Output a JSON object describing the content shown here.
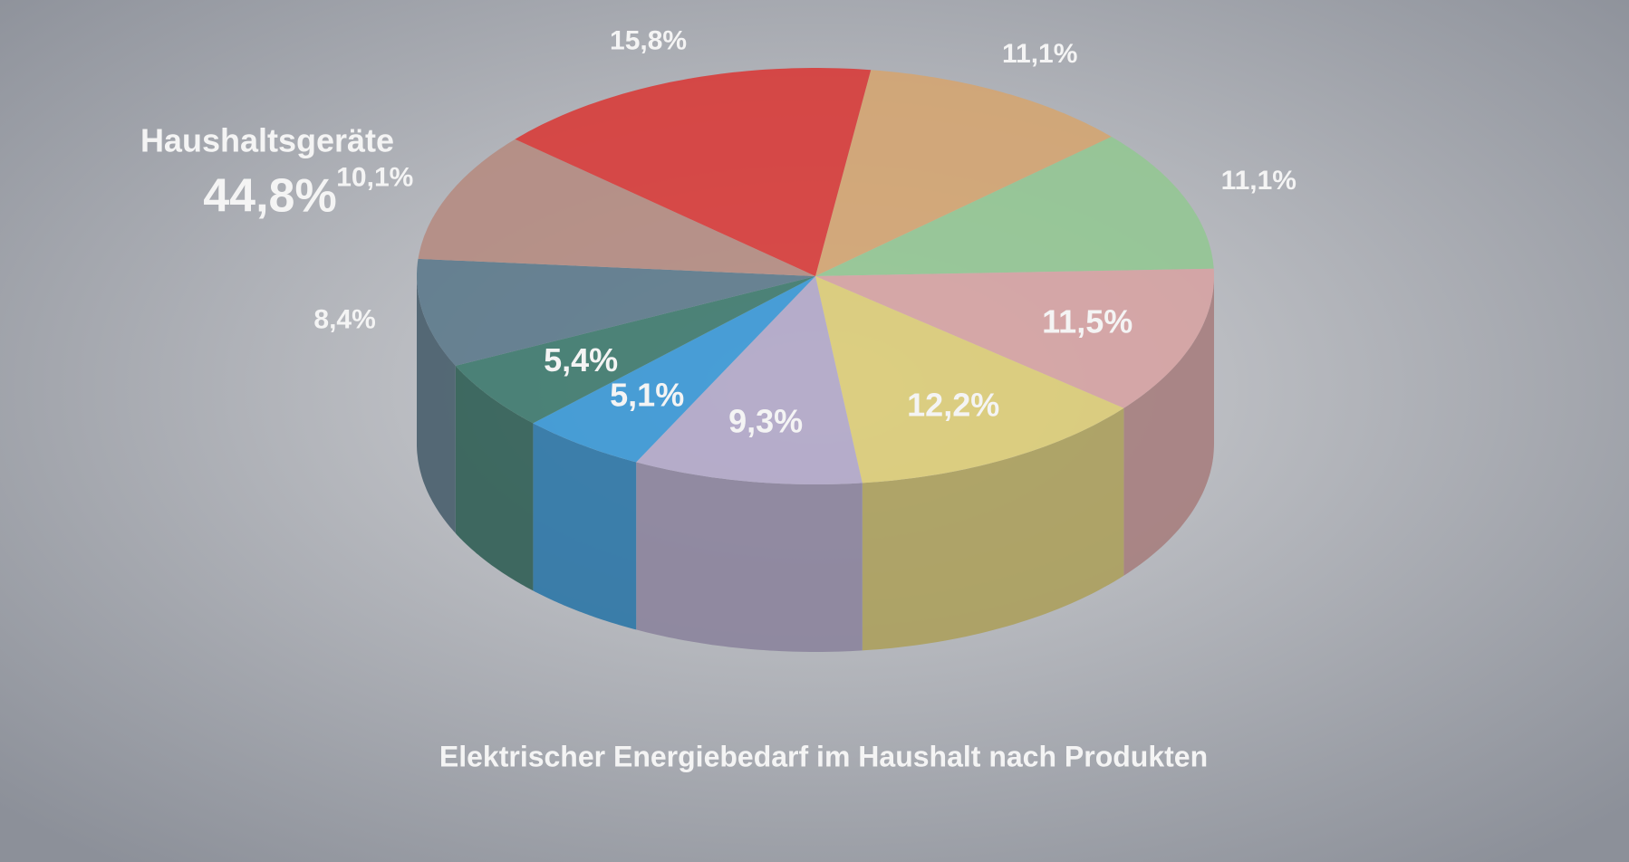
{
  "chart_data": {
    "type": "pie3d",
    "title": "Elektrischer Energiebedarf im Haushalt nach Produkten",
    "annotation": {
      "label": "Haushaltsgeräte",
      "value_label": "44,8%"
    },
    "start_angle": 8,
    "series": [
      {
        "name": "",
        "values": [
          11.1,
          11.1,
          11.5,
          12.2,
          9.3,
          5.1,
          5.4,
          8.4,
          10.1,
          15.8
        ],
        "value_labels": [
          "11,1%",
          "11,1%",
          "11,5%",
          "12,2%",
          "9,3%",
          "5,1%",
          "5,4%",
          "8,4%",
          "10,1%",
          "15,8%"
        ],
        "colors": [
          "#d4a572",
          "#93c693",
          "#d6a3a3",
          "#ddcd78",
          "#b3a8c9",
          "#3a98d6",
          "#3e7a6e",
          "#5d7a8c",
          "#b58c82",
          "#d83c3a"
        ]
      }
    ]
  }
}
